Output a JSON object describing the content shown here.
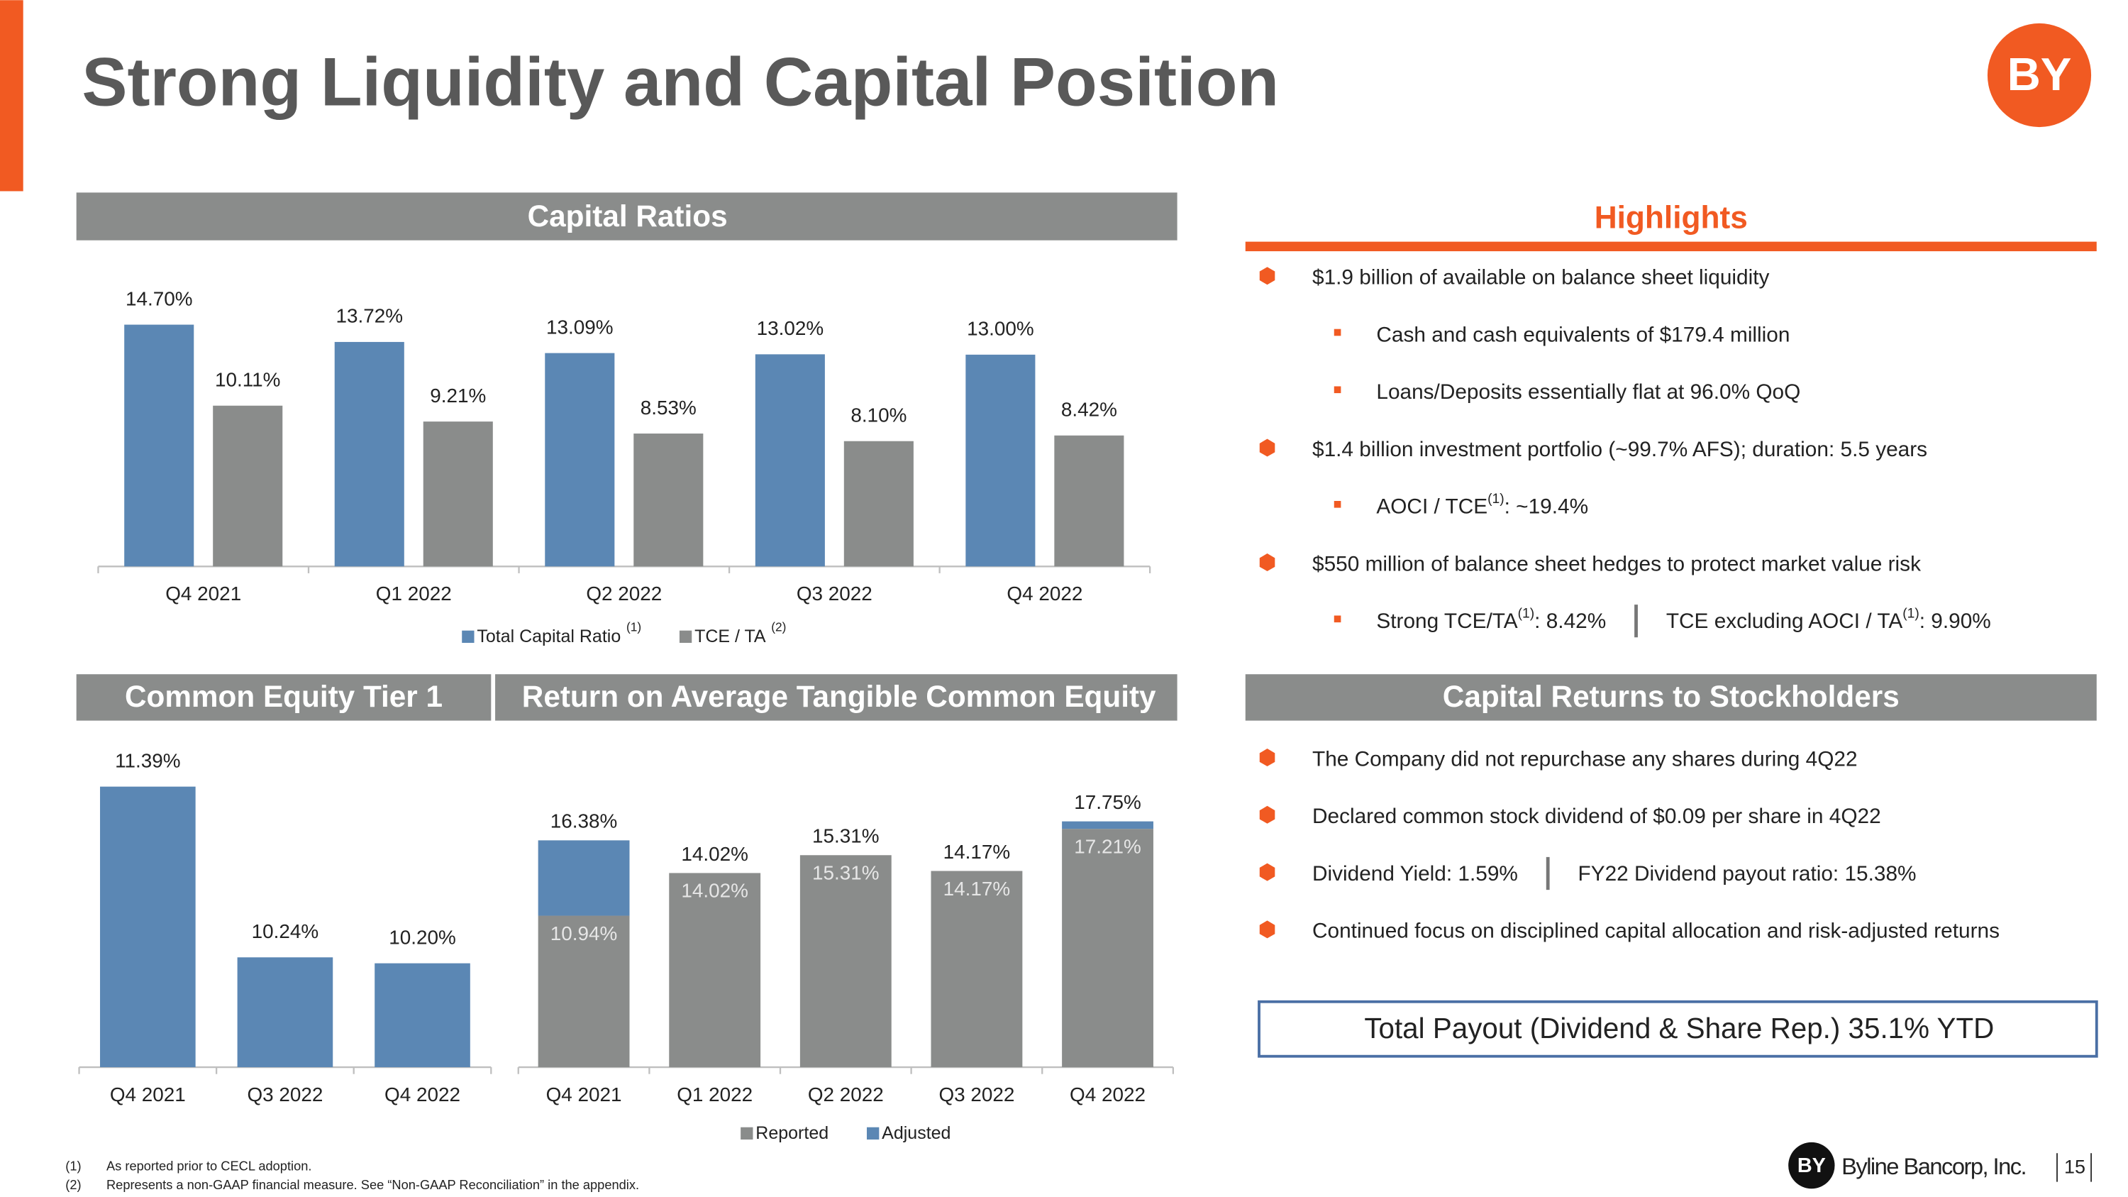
{
  "title": "Strong Liquidity and Capital Position",
  "logo": "BY",
  "chart_data": [
    {
      "type": "bar",
      "title": "Capital Ratios",
      "categories": [
        "Q4 2021",
        "Q1 2022",
        "Q2 2022",
        "Q3 2022",
        "Q4 2022"
      ],
      "series": [
        {
          "name": "Total Capital Ratio",
          "note": "(1)",
          "color": "#5b87b4",
          "values": [
            14.7,
            13.72,
            13.09,
            13.02,
            13.0
          ],
          "value_labels": [
            "14.70%",
            "13.72%",
            "13.09%",
            "13.02%",
            "13.00%"
          ]
        },
        {
          "name": "TCE / TA",
          "note": "(2)",
          "color": "#8a8c8b",
          "values": [
            10.11,
            9.21,
            8.53,
            8.1,
            8.42
          ],
          "value_labels": [
            "10.11%",
            "9.21%",
            "8.53%",
            "8.10%",
            "8.42%"
          ]
        }
      ],
      "ylim": [
        1,
        16
      ]
    },
    {
      "type": "bar",
      "title": "Common Equity Tier 1",
      "categories": [
        "Q4 2021",
        "Q3 2022",
        "Q4 2022"
      ],
      "values": [
        11.39,
        10.24,
        10.2
      ],
      "value_labels": [
        "11.39%",
        "10.24%",
        "10.20%"
      ],
      "color": "#5b87b4",
      "ylim": [
        9.5,
        12
      ]
    },
    {
      "type": "stacked_bar",
      "title": "Return on Average Tangible Common Equity",
      "categories": [
        "Q4 2021",
        "Q1 2022",
        "Q2 2022",
        "Q3 2022",
        "Q4 2022"
      ],
      "series": [
        {
          "name": "Reported",
          "color": "#8a8c8b",
          "values": [
            10.94,
            14.02,
            15.31,
            14.17,
            17.21
          ],
          "value_labels": [
            "10.94%",
            "14.02%",
            "15.31%",
            "14.17%",
            "17.21%"
          ]
        },
        {
          "name": "Adjusted",
          "color": "#5b87b4",
          "values": [
            5.44,
            0,
            0,
            0,
            0.54
          ]
        }
      ],
      "total_labels": [
        "16.38%",
        "14.02%",
        "15.31%",
        "14.17%",
        "17.75%"
      ],
      "ylim": [
        0,
        20
      ]
    }
  ],
  "highlights": {
    "title": "Highlights",
    "items": [
      {
        "level": 1,
        "columns": [
          [
            "$1.9 billion of available on balance sheet liquidity"
          ]
        ]
      },
      {
        "level": 2,
        "columns": [
          [
            "Cash and cash equivalents of $179.4 million"
          ]
        ]
      },
      {
        "level": 2,
        "columns": [
          [
            "Loans/Deposits essentially flat at 96.0% QoQ"
          ]
        ]
      },
      {
        "level": 1,
        "columns": [
          [
            "$1.4 billion investment portfolio (~99.7% AFS); duration: 5.5 years"
          ]
        ]
      },
      {
        "level": 2,
        "columns": [
          [
            "AOCI / TCE",
            {
              "sup": "(1)"
            },
            ": ~19.4%"
          ]
        ]
      },
      {
        "level": 1,
        "columns": [
          [
            "$550 million of balance sheet hedges to protect market value risk"
          ]
        ]
      },
      {
        "level": 2,
        "columns": [
          [
            "Strong TCE/TA",
            {
              "sup": "(1)"
            },
            ": 8.42%"
          ],
          [
            "TCE excluding AOCI / TA",
            {
              "sup": "(1)"
            },
            ": 9.90%"
          ]
        ]
      }
    ]
  },
  "capital_returns": {
    "title": "Capital Returns to Stockholders",
    "items": [
      {
        "level": 1,
        "columns": [
          [
            "The Company did not repurchase any shares during 4Q22"
          ]
        ]
      },
      {
        "level": 1,
        "columns": [
          [
            "Declared common stock dividend of $0.09 per share in 4Q22"
          ]
        ]
      },
      {
        "level": 1,
        "columns": [
          [
            "Dividend Yield: 1.59%"
          ],
          [
            "FY22 Dividend payout ratio: 15.38%"
          ]
        ]
      },
      {
        "level": 1,
        "columns": [
          [
            "Continued focus on disciplined capital allocation and risk-adjusted returns"
          ]
        ]
      }
    ]
  },
  "payout": "Total Payout (Dividend & Share Rep.) 35.1% YTD",
  "footnotes": [
    {
      "marker": "(1)",
      "text": "As reported prior to CECL adoption."
    },
    {
      "marker": "(2)",
      "text": "Represents a non-GAAP financial measure.  See “Non-GAAP Reconciliation” in the appendix."
    }
  ],
  "footer": {
    "company": "Byline Bancorp, Inc.",
    "page": "15"
  }
}
